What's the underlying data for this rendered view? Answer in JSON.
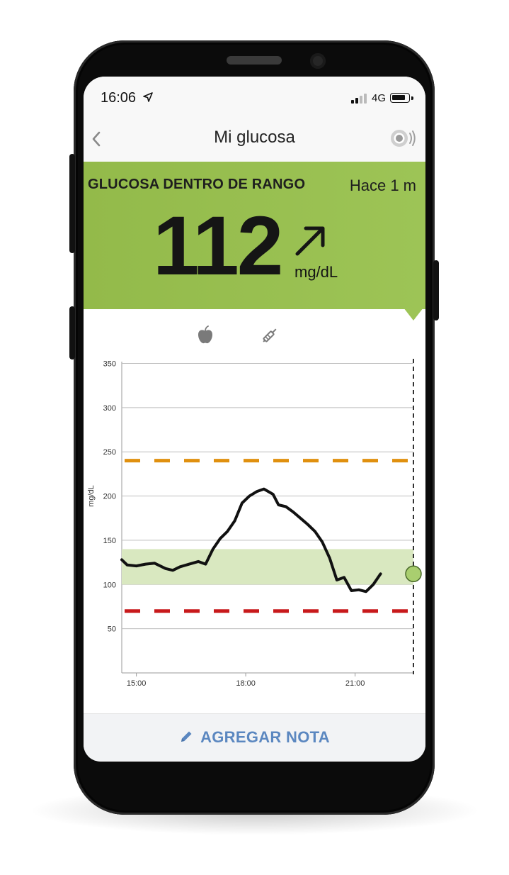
{
  "status_bar": {
    "time": "16:06",
    "network": "4G",
    "icons": [
      "location-arrow-icon",
      "signal-icon",
      "battery-icon"
    ]
  },
  "nav": {
    "title": "Mi glucosa",
    "icons": [
      "back-chevron-icon",
      "sensor-icon"
    ]
  },
  "banner": {
    "status_label": "GLUCOSA DENTRO DE RANGO",
    "time_ago": "Hace 1 m",
    "value": "112",
    "unit": "mg/dL",
    "trend_icon": "trend-up-right-icon",
    "color": "#9dc456"
  },
  "markers": {
    "icons": [
      "food-apple-icon",
      "insulin-pen-icon"
    ]
  },
  "chart_data": {
    "type": "line",
    "ylabel": "mg/dL",
    "ylim": [
      0,
      360
    ],
    "yticks": [
      50,
      100,
      150,
      200,
      250,
      300,
      350
    ],
    "xticks": [
      {
        "label": "15:00",
        "h": 15
      },
      {
        "label": "18:00",
        "h": 18
      },
      {
        "label": "21:00",
        "h": 21
      }
    ],
    "xlim_hours": [
      14.6,
      22.6
    ],
    "target_range": [
      100,
      140
    ],
    "high_threshold": 240,
    "low_threshold": 70,
    "colors": {
      "line": "#111111",
      "target": "#d9e8c0",
      "high": "#e0900f",
      "low": "#c8191b",
      "grid": "#bdbdbd",
      "current_point": "#a9ce6f"
    },
    "series": [
      {
        "x_hours": [
          14.6,
          14.75,
          15.0,
          15.25,
          15.5,
          15.8,
          16.0,
          16.2,
          16.45,
          16.7,
          16.9,
          17.1,
          17.3,
          17.5,
          17.7,
          17.9,
          18.1,
          18.3,
          18.5,
          18.75,
          18.9,
          19.1,
          19.3,
          19.5,
          19.7,
          19.9,
          20.1,
          20.3,
          20.5,
          20.7,
          20.9,
          21.1,
          21.3,
          21.5,
          21.7,
          22.0,
          22.3,
          22.6
        ],
        "values": [
          128,
          122,
          121,
          123,
          124,
          118,
          116,
          120,
          123,
          126,
          123,
          140,
          152,
          160,
          172,
          192,
          200,
          205,
          208,
          202,
          190,
          188,
          182,
          175,
          168,
          160,
          148,
          130,
          105,
          108,
          93,
          94,
          92,
          100,
          112,
          112,
          112,
          112
        ]
      }
    ],
    "current_point": {
      "x_hours": 22.6,
      "value": 112
    }
  },
  "footer": {
    "add_note_label": "AGREGAR NOTA"
  }
}
